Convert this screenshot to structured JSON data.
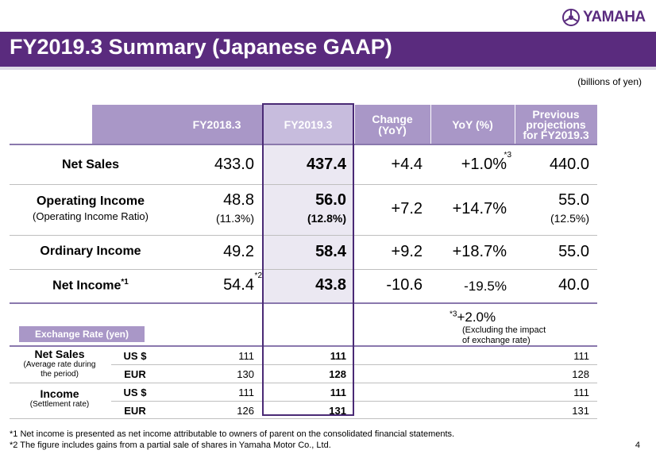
{
  "logo": {
    "text": "YAMAHA",
    "accent_color": "#5a2b7e"
  },
  "title": "FY2019.3 Summary (Japanese GAAP)",
  "units": "(billions of yen)",
  "table": {
    "headers": {
      "fy2018": "FY2018.3",
      "fy2019": "FY2019.3",
      "change": [
        "Change",
        "(YoY)"
      ],
      "yoy": "YoY (%)",
      "previous": [
        "Previous",
        "projections",
        "for FY2019.3"
      ]
    },
    "rows": [
      {
        "label": "Net Sales",
        "fy2018": "433.0",
        "fy2019": "437.4",
        "change": "+4.4",
        "yoy": "+1.0%",
        "yoy_note": "*3",
        "previous": "440.0"
      },
      {
        "label": "Operating Income",
        "sublabel": "(Operating Income Ratio)",
        "fy2018": "48.8",
        "fy2018_pct": "(11.3%)",
        "fy2019": "56.0",
        "fy2019_pct": "(12.8%)",
        "change": "+7.2",
        "yoy": "+14.7%",
        "previous": "55.0",
        "previous_pct": "(12.5%)"
      },
      {
        "label": "Ordinary Income",
        "fy2018": "49.2",
        "fy2019": "58.4",
        "change": "+9.2",
        "yoy": "+18.7%",
        "previous": "55.0"
      },
      {
        "label": "Net Income",
        "label_note": "*1",
        "fy2018": "54.4",
        "fy2018_note": "*2",
        "fy2019": "43.8",
        "change": "-10.6",
        "yoy": "-19.5%",
        "previous": "40.0"
      }
    ]
  },
  "note3": {
    "marker": "*3",
    "value": "+2.0%",
    "lines": [
      "(Excluding the impact",
      "of exchange rate)"
    ]
  },
  "exchange": {
    "title": "Exchange Rate (yen)",
    "groups": [
      {
        "label": "Net Sales",
        "sublabel": [
          "(Average rate during",
          "the period)"
        ],
        "rows": [
          {
            "currency": "US $",
            "fy2018": "111",
            "fy2019": "111",
            "previous": "111"
          },
          {
            "currency": "EUR",
            "fy2018": "130",
            "fy2019": "128",
            "previous": "128"
          }
        ]
      },
      {
        "label": "Income",
        "sublabel": [
          "(Settlement rate)"
        ],
        "rows": [
          {
            "currency": "US $",
            "fy2018": "111",
            "fy2019": "111",
            "previous": "111"
          },
          {
            "currency": "EUR",
            "fy2018": "126",
            "fy2019": "131",
            "previous": "131"
          }
        ]
      }
    ]
  },
  "footnotes": [
    "*1  Net income is presented as net income attributable to owners of parent on the consolidated financial statements.",
    "*2  The figure includes gains from a partial sale of shares in Yamaha Motor Co., Ltd."
  ],
  "page_number": "4"
}
